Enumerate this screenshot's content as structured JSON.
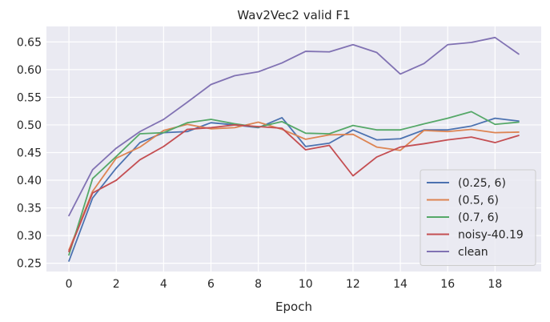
{
  "chart_data": {
    "type": "line",
    "title": "Wav2Vec2 valid F1",
    "xlabel": "Epoch",
    "ylabel": "",
    "x": [
      0,
      1,
      2,
      3,
      4,
      5,
      6,
      7,
      8,
      9,
      10,
      11,
      12,
      13,
      14,
      15,
      16,
      17,
      18,
      19
    ],
    "xlim": [
      -0.95,
      19.95
    ],
    "ylim": [
      0.235,
      0.678
    ],
    "xticks": [
      0,
      2,
      4,
      6,
      8,
      10,
      12,
      14,
      16,
      18
    ],
    "yticks": [
      0.25,
      0.3,
      0.35,
      0.4,
      0.45,
      0.5,
      0.55,
      0.6,
      0.65
    ],
    "xtick_labels": [
      "0",
      "2",
      "4",
      "6",
      "8",
      "10",
      "12",
      "14",
      "16",
      "18"
    ],
    "ytick_labels": [
      "0.25",
      "0.30",
      "0.35",
      "0.40",
      "0.45",
      "0.50",
      "0.55",
      "0.60",
      "0.65"
    ],
    "grid": true,
    "legend_position": "lower-right",
    "series": [
      {
        "name": "(0.25, 6)",
        "color": "#4c72b0",
        "values": [
          0.254,
          0.368,
          0.422,
          0.468,
          0.486,
          0.488,
          0.504,
          0.5,
          0.495,
          0.513,
          0.461,
          0.467,
          0.491,
          0.473,
          0.475,
          0.491,
          0.491,
          0.498,
          0.512,
          0.507
        ]
      },
      {
        "name": "(0.5, 6)",
        "color": "#dd8452",
        "values": [
          0.274,
          0.38,
          0.44,
          0.46,
          0.49,
          0.501,
          0.493,
          0.495,
          0.505,
          0.492,
          0.474,
          0.482,
          0.483,
          0.46,
          0.454,
          0.49,
          0.488,
          0.492,
          0.486,
          0.487
        ]
      },
      {
        "name": "(0.7, 6)",
        "color": "#55a868",
        "values": [
          0.265,
          0.403,
          0.443,
          0.484,
          0.486,
          0.504,
          0.51,
          0.502,
          0.496,
          0.506,
          0.485,
          0.484,
          0.499,
          0.491,
          0.491,
          0.502,
          0.512,
          0.524,
          0.501,
          0.505
        ]
      },
      {
        "name": "noisy-40.19",
        "color": "#c44e52",
        "values": [
          0.271,
          0.377,
          0.4,
          0.437,
          0.461,
          0.492,
          0.495,
          0.5,
          0.497,
          0.494,
          0.455,
          0.463,
          0.408,
          0.442,
          0.46,
          0.466,
          0.473,
          0.478,
          0.468,
          0.481
        ]
      },
      {
        "name": "clean",
        "color": "#8172b3",
        "values": [
          0.336,
          0.419,
          0.458,
          0.488,
          0.51,
          0.541,
          0.573,
          0.589,
          0.596,
          0.612,
          0.633,
          0.632,
          0.645,
          0.631,
          0.592,
          0.611,
          0.645,
          0.649,
          0.658,
          0.628
        ]
      }
    ]
  }
}
